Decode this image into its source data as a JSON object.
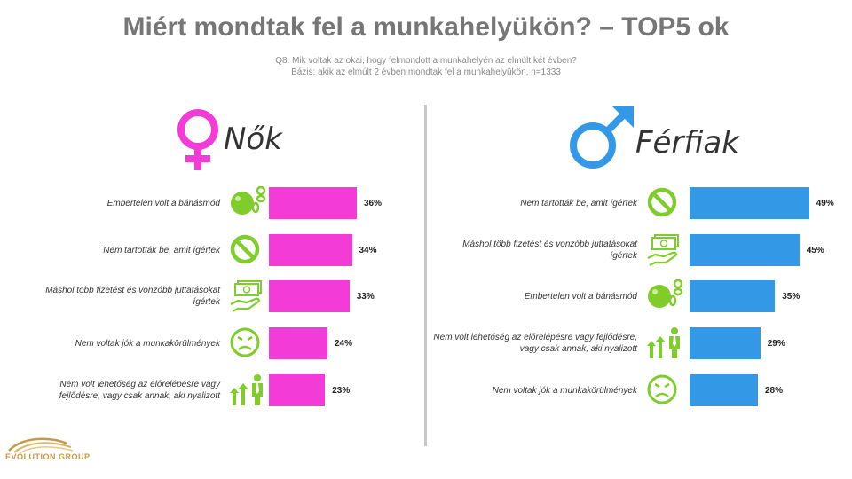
{
  "title": "Miért mondtak fel a munkahelyükön? – TOP5 ok",
  "subtitle": "Q8. Mik voltak az okai, hogy felmondott a munkahelyén az elmúlt két évben?",
  "basis": "Bázis: akik az elmúlt 2 évben mondtak fel a munkahelyükön, n=1333",
  "logo_text": "EVOLUTION GROUP",
  "colors": {
    "women": "#f23bd7",
    "men": "#3399e6",
    "icon": "#7fcc2a"
  },
  "chart_data": [
    {
      "type": "bar",
      "panel": "Nők",
      "categories": [
        "Embertelen volt a bánásmód",
        "Nem tartották be, amit ígértek",
        "Máshol több fizetést és vonzóbb juttatásokat ígértek",
        "Nem voltak jók a munkakörülmények",
        "Nem volt lehetőség az előrelépésre vagy fejlődésre, vagy csak annak, aki nyalizott"
      ],
      "values": [
        36,
        34,
        33,
        24,
        23
      ],
      "labels": [
        "36%",
        "34%",
        "33%",
        "24%",
        "23%"
      ],
      "icons": [
        "ball-and-chain-icon",
        "no-sign-icon",
        "money-hand-icon",
        "sad-face-icon",
        "career-arrows-icon"
      ]
    },
    {
      "type": "bar",
      "panel": "Férfiak",
      "categories": [
        "Nem tartották be, amit ígértek",
        "Máshol több fizetést és vonzóbb juttatásokat ígértek",
        "Embertelen volt a bánásmód",
        "Nem volt lehetőség az előrelépésre vagy fejlődésre, vagy csak annak, aki nyalizott",
        "Nem voltak jók a munkakörülmények"
      ],
      "values": [
        49,
        45,
        35,
        29,
        28
      ],
      "labels": [
        "49%",
        "45%",
        "35%",
        "29%",
        "28%"
      ],
      "icons": [
        "no-sign-icon",
        "money-hand-icon",
        "ball-and-chain-icon",
        "career-arrows-icon",
        "sad-face-icon"
      ]
    }
  ]
}
